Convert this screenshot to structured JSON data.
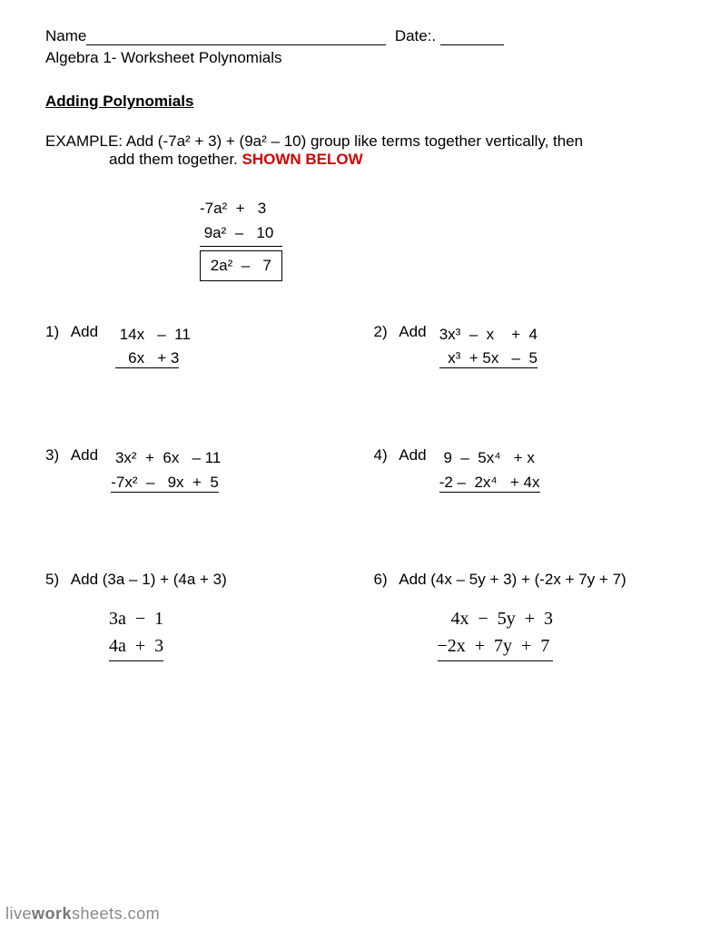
{
  "header": {
    "name_label": "Name",
    "date_label": "Date:."
  },
  "subtitle": "Algebra 1- Worksheet  Polynomials",
  "section_title": "Adding Polynomials",
  "example": {
    "prefix": "EXAMPLE: ",
    "line1": "Add (-7a² + 3) + (9a² – 10) group like terms together vertically, then",
    "line2": "add them together. ",
    "shown": "SHOWN BELOW",
    "stack": {
      "r1": "-7a²  +   3",
      "r2": " 9a²  –   10",
      "ans": " 2a²  –   7 "
    }
  },
  "problems": {
    "p1": {
      "num": "1)",
      "label": "Add",
      "r1": " 14x   –  11",
      "r2": "   6x   + 3"
    },
    "p2": {
      "num": "2)",
      "label": "Add",
      "r1": "3x³  –  x    +  4",
      "r2": "  x³  + 5x   –  5"
    },
    "p3": {
      "num": "3)",
      "label": "Add",
      "r1": " 3x²  +  6x   – 11",
      "r2": "-7x²  –   9x  +  5"
    },
    "p4": {
      "num": "4)",
      "label": "Add",
      "r1": " 9  –  5x⁴   + x",
      "r2": "-2 –  2x⁴   + 4x"
    },
    "p5": {
      "num": "5)",
      "label": "Add  (3a – 1) + (4a + 3)",
      "s1": "3a  −  1",
      "s2": "4a  +  3"
    },
    "p6": {
      "num": "6)",
      "label": "Add (4x – 5y + 3) + (-2x + 7y + 7)",
      "s1": "   4x  −  5y  +  3",
      "s2": "−2x  +  7y  +  7"
    }
  },
  "footer": {
    "part1": "live",
    "part2": "work",
    "part3": "sheets.com"
  },
  "colors": {
    "text": "#000000",
    "accent": "#d40000",
    "footer": "#888888",
    "background": "#ffffff"
  }
}
